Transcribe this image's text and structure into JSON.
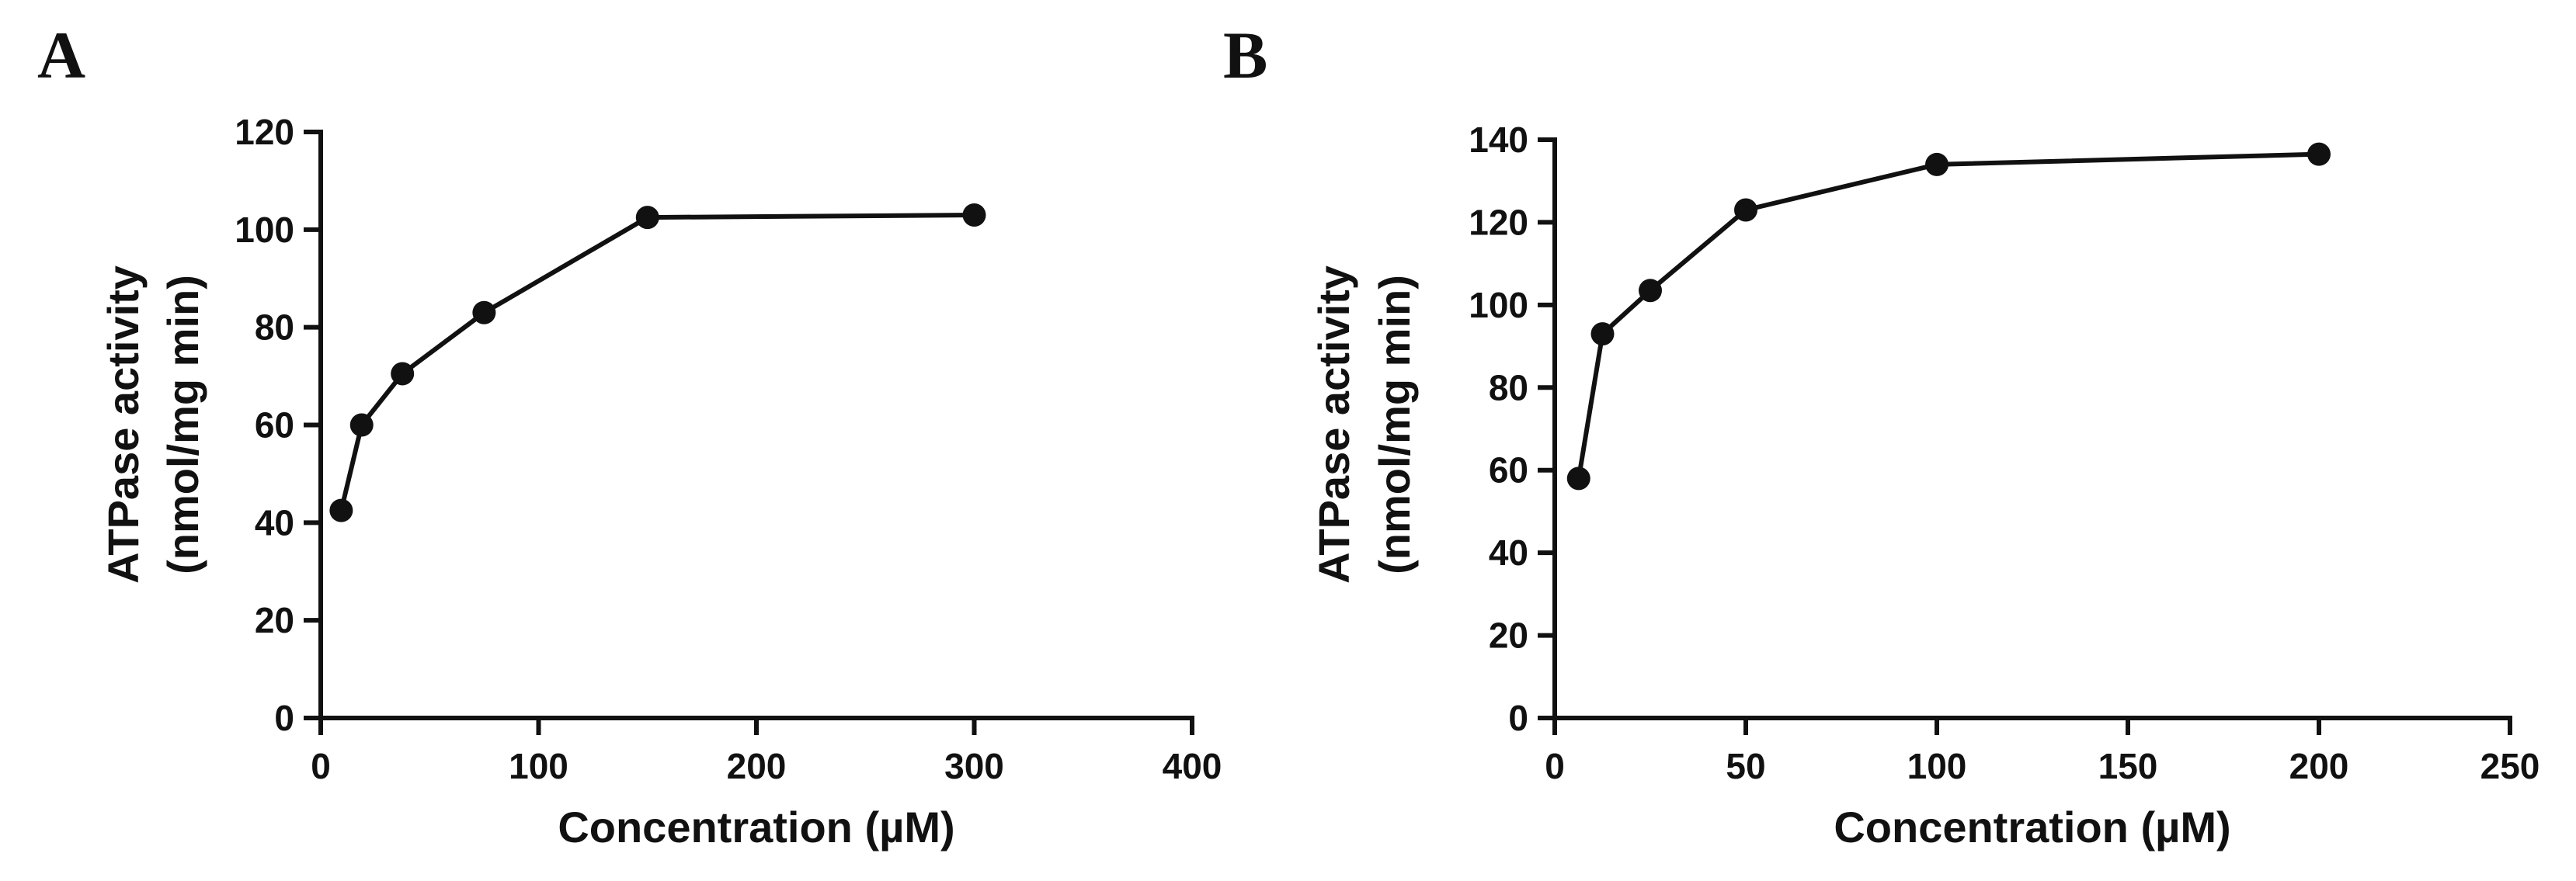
{
  "chart_data": [
    {
      "type": "line",
      "panel": "A",
      "xlabel": "Concentration (µM)",
      "ylabel": [
        "ATPase activity",
        "(nmol/mg min)"
      ],
      "xlim": [
        0,
        400
      ],
      "ylim": [
        0,
        120
      ],
      "xticks": [
        0,
        100,
        200,
        300,
        400
      ],
      "yticks": [
        0,
        20,
        40,
        60,
        80,
        100,
        120
      ],
      "grid": false,
      "x": [
        9.4,
        18.8,
        37.5,
        75,
        150,
        300
      ],
      "series": [
        {
          "values": [
            42.5,
            60,
            70.5,
            83,
            102.5,
            103
          ]
        }
      ]
    },
    {
      "type": "line",
      "panel": "B",
      "xlabel": "Concentration (µM)",
      "ylabel": [
        "ATPase activity",
        "(nmol/mg min)"
      ],
      "xlim": [
        0,
        250
      ],
      "ylim": [
        0,
        140
      ],
      "xticks": [
        0,
        50,
        100,
        150,
        200,
        250
      ],
      "yticks": [
        0,
        20,
        40,
        60,
        80,
        100,
        120,
        140
      ],
      "grid": false,
      "x": [
        6.25,
        12.5,
        25,
        50,
        100,
        200
      ],
      "series": [
        {
          "values": [
            58,
            93,
            103.5,
            123,
            134,
            136.5
          ]
        }
      ]
    }
  ]
}
